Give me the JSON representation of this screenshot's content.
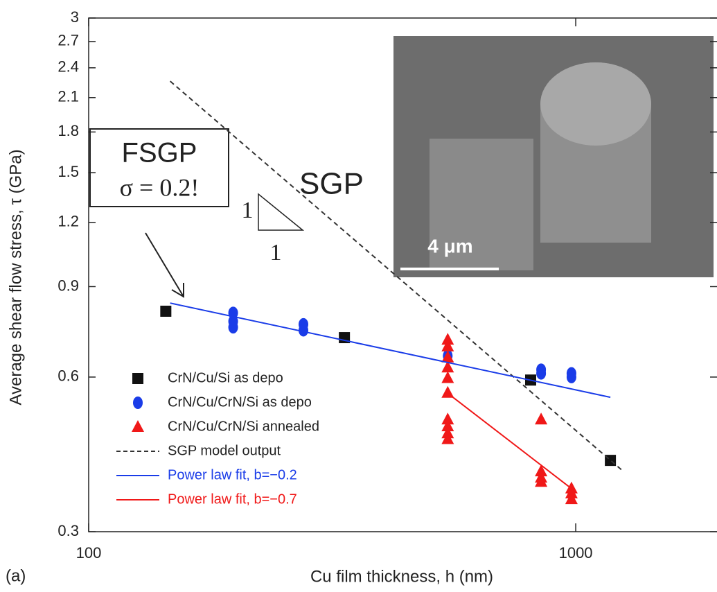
{
  "chart_data": {
    "type": "scatter",
    "x_label": "Cu film thickness, h (nm)",
    "y_label": "Average shear flow stress, τ (GPa)",
    "panel_label": "(a)",
    "xlog": true,
    "ylog": true,
    "xlim": [
      100,
      1950
    ],
    "ylim": [
      0.3,
      3
    ],
    "xticks": [
      100,
      1000
    ],
    "yticks": [
      0.3,
      0.6,
      0.9,
      1.2,
      1.5,
      1.8,
      2.1,
      2.4,
      2.7,
      3
    ],
    "series": [
      {
        "name": "CrN/Cu/Si as depo",
        "color": "#111111",
        "marker": "square",
        "x": [
          144,
          335,
          808,
          1178
        ],
        "values": [
          0.806,
          0.716,
          0.592,
          0.413
        ]
      },
      {
        "name": "CrN/Cu/CrN/Si as depo",
        "color": "#1a3ce8",
        "marker": "circle",
        "x": [
          198,
          198,
          198,
          276,
          276,
          546,
          849,
          849,
          980,
          980
        ],
        "values": [
          0.8,
          0.77,
          0.75,
          0.76,
          0.74,
          0.66,
          0.62,
          0.61,
          0.61,
          0.6
        ]
      },
      {
        "name": "CrN/Cu/CrN/Si annealed",
        "color": "#f01818",
        "marker": "triangle",
        "x": [
          546,
          546,
          546,
          546,
          546,
          546,
          546,
          546,
          546,
          546,
          849,
          849,
          849,
          849,
          980,
          980,
          980
        ],
        "values": [
          0.709,
          0.688,
          0.655,
          0.626,
          0.597,
          0.559,
          0.496,
          0.481,
          0.466,
          0.454,
          0.496,
          0.393,
          0.382,
          0.375,
          0.364,
          0.356,
          0.347
        ]
      },
      {
        "name": "SGP model output",
        "color": "#333333",
        "marker": "dashed",
        "x": [
          147,
          1253
        ],
        "values": [
          2.26,
          0.393
        ]
      },
      {
        "name": "Power law fit, b=−0.2",
        "color": "#1a3ce8",
        "marker": "solid",
        "x": [
          147,
          1178
        ],
        "values": [
          0.836,
          0.548
        ]
      },
      {
        "name": "Power law fit, b=−0.7",
        "color": "#f01818",
        "marker": "solid",
        "x": [
          546,
          980
        ],
        "values": [
          0.558,
          0.364
        ]
      }
    ],
    "annotations": {
      "box_title": "FSGP",
      "box_formula": "σ = 0.2!",
      "model": "SGP",
      "slope_rise": "1",
      "slope_run": "1",
      "scale_bar": "4 μm"
    }
  }
}
